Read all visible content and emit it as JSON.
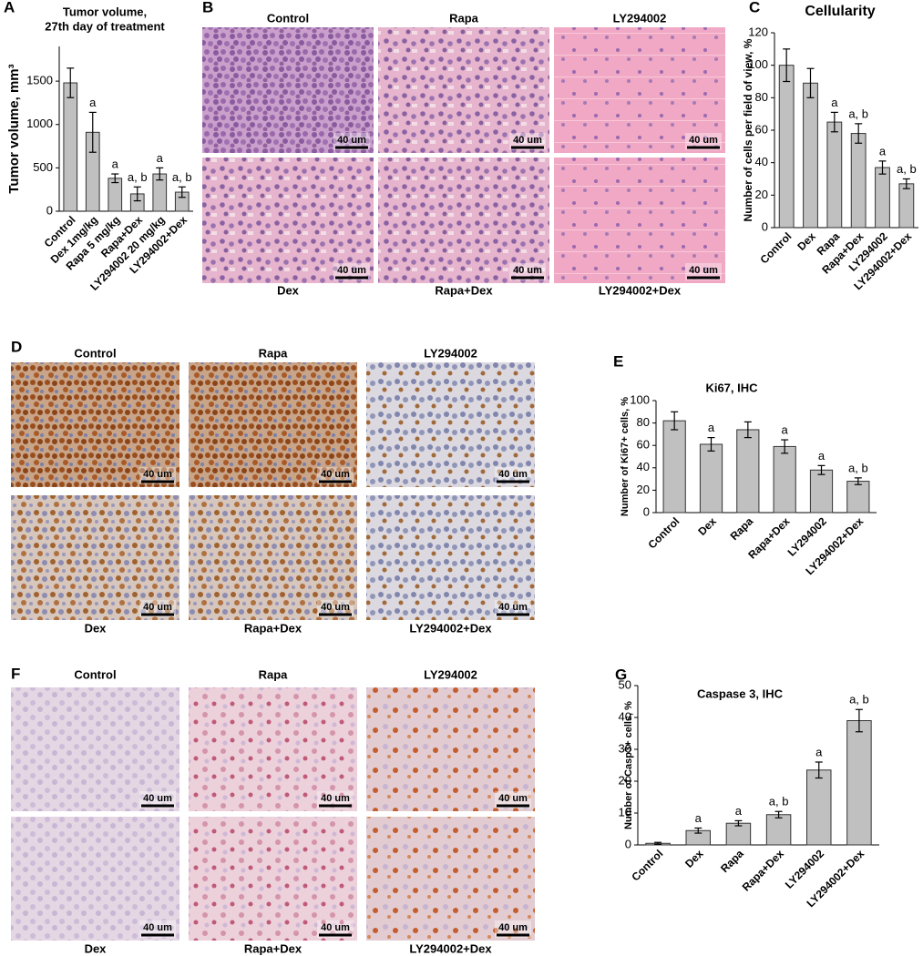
{
  "chart_data": [
    {
      "type": "bar",
      "panel": "A",
      "title": [
        "Tumor volume,",
        "27th day of treatment"
      ],
      "y_label": "Tumor volume, mm³",
      "categories": [
        "Control",
        "Dex 1mg/kg",
        "Rapa 5 mg/kg",
        "Rapa+Dex",
        "LY294002 20 mg/kg",
        "LY294002+Dex"
      ],
      "values": [
        1480,
        910,
        380,
        200,
        430,
        220
      ],
      "errors": [
        170,
        230,
        50,
        80,
        70,
        60
      ],
      "annotations": [
        null,
        "a",
        "a",
        "a, b",
        "a",
        "a, b"
      ],
      "color": "#c0c0c0",
      "ylim": [
        0,
        1900
      ],
      "yticks": [
        0,
        500,
        1000,
        1500
      ]
    },
    {
      "type": "bar",
      "panel": "C",
      "title": "Cellularity",
      "y_label": "Number of cells per field of view, %",
      "categories": [
        "Control",
        "Dex",
        "Rapa",
        "Rapa+Dex",
        "LY294002",
        "LY294002+Dex"
      ],
      "values": [
        100,
        89,
        65,
        58,
        37,
        27
      ],
      "errors": [
        10,
        9,
        6,
        6,
        4,
        3
      ],
      "annotations": [
        null,
        null,
        "a",
        "a, b",
        "a",
        "a, b"
      ],
      "color": "#c0c0c0",
      "ylim": [
        0,
        120
      ],
      "yticks": [
        0,
        20,
        40,
        60,
        80,
        100,
        120
      ]
    },
    {
      "type": "bar",
      "panel": "E",
      "title": "Ki67, IHC",
      "y_label": "Number of Ki67+ cells, %",
      "categories": [
        "Control",
        "Dex",
        "Rapa",
        "Rapa+Dex",
        "LY294002",
        "LY294002+Dex"
      ],
      "values": [
        82,
        61,
        74,
        59,
        38,
        28
      ],
      "errors": [
        8,
        6,
        7,
        6,
        4,
        3
      ],
      "annotations": [
        null,
        "a",
        null,
        "a",
        "a",
        "a, b"
      ],
      "color": "#c0c0c0",
      "ylim": [
        0,
        100
      ],
      "yticks": [
        0,
        20,
        40,
        60,
        80,
        100
      ]
    },
    {
      "type": "bar",
      "panel": "G",
      "title": "Caspase 3, IHC",
      "y_label": "Number of Casp3+ cells, %",
      "categories": [
        "Control",
        "Dex",
        "Rapa",
        "Rapa+Dex",
        "LY294002",
        "LY294002+Dex"
      ],
      "values": [
        0.5,
        4.5,
        6.8,
        9.5,
        23.5,
        39
      ],
      "errors": [
        0.3,
        0.8,
        0.8,
        1,
        2.5,
        3.5
      ],
      "annotations": [
        null,
        "a",
        "a",
        "a, b",
        "a",
        "a, b"
      ],
      "color": "#c0c0c0",
      "ylim": [
        0,
        50
      ],
      "yticks": [
        0,
        10,
        20,
        30,
        40,
        50
      ]
    }
  ],
  "micrographs": [
    {
      "panel": "B",
      "top_labels": [
        "Control",
        "Rapa",
        "LY294002"
      ],
      "bottom_labels": [
        "Dex",
        "Rapa+Dex",
        "LY294002+Dex"
      ],
      "scale_bar": "40 um"
    },
    {
      "panel": "D",
      "top_labels": [
        "Control",
        "Rapa",
        "LY294002"
      ],
      "bottom_labels": [
        "Dex",
        "Rapa+Dex",
        "LY294002+Dex"
      ],
      "scale_bar": "40 um"
    },
    {
      "panel": "F",
      "top_labels": [
        "Control",
        "Rapa",
        "LY294002"
      ],
      "bottom_labels": [
        "Dex",
        "Rapa+Dex",
        "LY294002+Dex"
      ],
      "scale_bar": "40 um"
    }
  ]
}
